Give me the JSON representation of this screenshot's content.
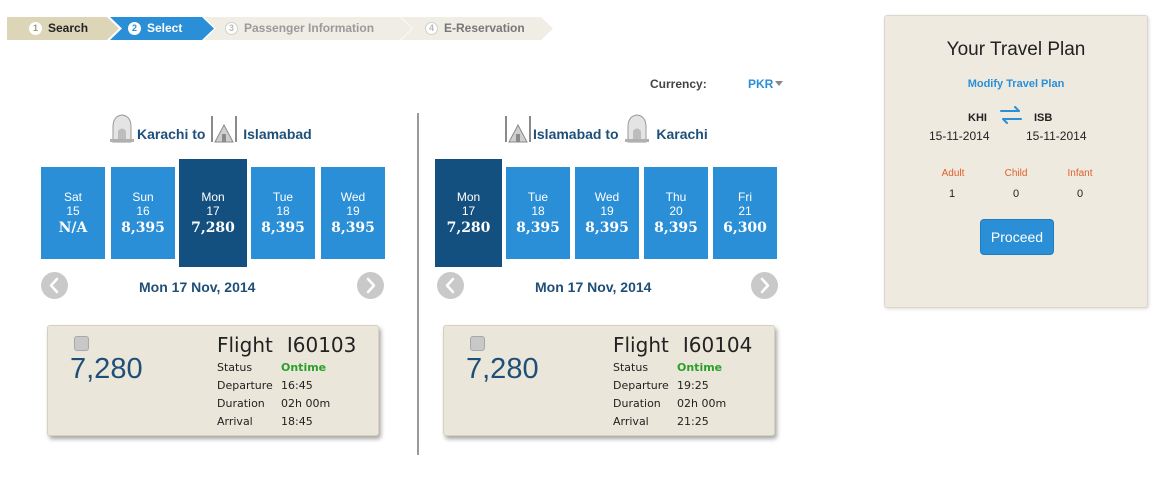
{
  "steps": [
    {
      "num": "1",
      "label": "Search"
    },
    {
      "num": "2",
      "label": "Select"
    },
    {
      "num": "3",
      "label": "Passenger Information"
    },
    {
      "num": "4",
      "label": "E-Reservation"
    }
  ],
  "currency": {
    "label": "Currency:",
    "value": "PKR"
  },
  "outbound": {
    "route": {
      "from": "Karachi",
      "sep": "to",
      "to": "Islamabad"
    },
    "dates": [
      {
        "day": "Sat",
        "date": "15",
        "price": "N/A",
        "selected": false
      },
      {
        "day": "Sun",
        "date": "16",
        "price": "8,395",
        "selected": false
      },
      {
        "day": "Mon",
        "date": "17",
        "price": "7,280",
        "selected": true
      },
      {
        "day": "Tue",
        "date": "18",
        "price": "8,395",
        "selected": false
      },
      {
        "day": "Wed",
        "date": "19",
        "price": "8,395",
        "selected": false
      }
    ],
    "selected_date": "Mon 17 Nov, 2014",
    "flight": {
      "price": "7,280",
      "title": "Flight",
      "number": "I60103",
      "rows": [
        {
          "label": "Status",
          "value": "Ontime"
        },
        {
          "label": "Departure",
          "value": "16:45"
        },
        {
          "label": "Duration",
          "value": "02h 00m"
        },
        {
          "label": "Arrival",
          "value": "18:45"
        }
      ]
    }
  },
  "return": {
    "route": {
      "from": "Islamabad",
      "sep": "to",
      "to": "Karachi"
    },
    "dates": [
      {
        "day": "Mon",
        "date": "17",
        "price": "7,280",
        "selected": true
      },
      {
        "day": "Tue",
        "date": "18",
        "price": "8,395",
        "selected": false
      },
      {
        "day": "Wed",
        "date": "19",
        "price": "8,395",
        "selected": false
      },
      {
        "day": "Thu",
        "date": "20",
        "price": "8,395",
        "selected": false
      },
      {
        "day": "Fri",
        "date": "21",
        "price": "6,300",
        "selected": false
      }
    ],
    "selected_date": "Mon 17 Nov, 2014",
    "flight": {
      "price": "7,280",
      "title": "Flight",
      "number": "I60104",
      "rows": [
        {
          "label": "Status",
          "value": "Ontime"
        },
        {
          "label": "Departure",
          "value": "19:25"
        },
        {
          "label": "Duration",
          "value": "02h 00m"
        },
        {
          "label": "Arrival",
          "value": "21:25"
        }
      ]
    }
  },
  "plan": {
    "title": "Your Travel Plan",
    "modify": "Modify Travel Plan",
    "from": "KHI",
    "to": "ISB",
    "depart_date": "15-11-2014",
    "return_date": "15-11-2014",
    "pax": [
      {
        "label": "Adult",
        "count": "1"
      },
      {
        "label": "Child",
        "count": "0"
      },
      {
        "label": "Infant",
        "count": "0"
      }
    ],
    "proceed": "Proceed"
  },
  "icons": {
    "left_nav": "chevron-left-icon",
    "right_nav": "chevron-right-icon",
    "swap": "swap-arrows-icon",
    "landmark_karachi": "mausoleum-icon",
    "landmark_islamabad": "mosque-icon"
  },
  "colors": {
    "accent": "#2a8fd6",
    "selected_tile": "#13507f",
    "ontime": "#2aa02a",
    "pax_label": "#e0602a",
    "panel_bg": "#eeeae0"
  }
}
